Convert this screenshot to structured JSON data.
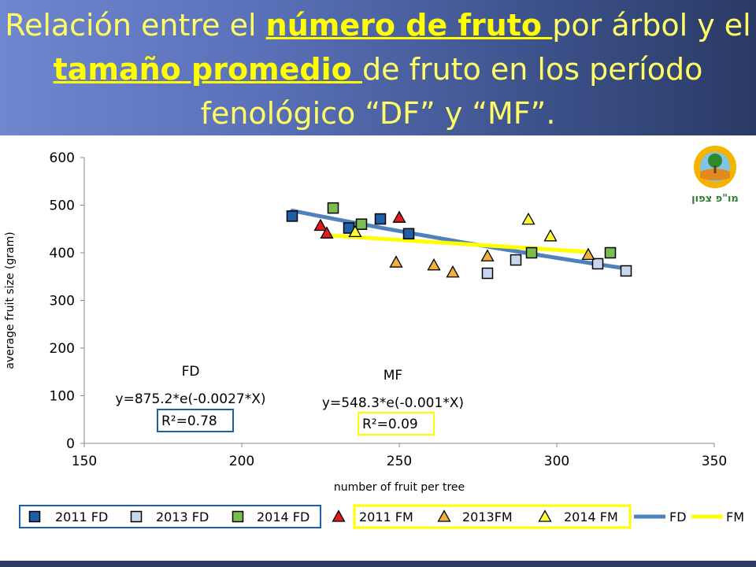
{
  "slide": {
    "title_part1": "Relación entre el ",
    "title_u1": "número de fruto ",
    "title_part2": "por árbol y el",
    "title_u2": "tamaño promedio ",
    "title_part3": "de fruto en los período",
    "title_line3": "fenológico  “DF” y “MF”.",
    "logo_text": "מו\"פ צפון",
    "logo_ring_text": "NORTHERN R&D"
  },
  "chart_data": {
    "type": "scatter",
    "xlabel": "number of fruit per tree",
    "ylabel": "average fruit size (gram)",
    "xlim": [
      150,
      350
    ],
    "ylim": [
      0,
      600
    ],
    "xticks": [
      150,
      200,
      250,
      300,
      350
    ],
    "yticks": [
      0,
      100,
      200,
      300,
      400,
      500,
      600
    ],
    "grid": false,
    "series": [
      {
        "name": "2011 FD",
        "marker": "square",
        "color": "#1f5fa8",
        "points": [
          [
            216,
            477
          ],
          [
            234,
            452
          ],
          [
            244,
            471
          ],
          [
            253,
            440
          ]
        ]
      },
      {
        "name": "2013 FD",
        "marker": "square",
        "color": "#c9d7ee",
        "points": [
          [
            278,
            357
          ],
          [
            287,
            385
          ],
          [
            313,
            377
          ],
          [
            322,
            362
          ]
        ]
      },
      {
        "name": "2014 FD",
        "marker": "square",
        "color": "#7cbd4f",
        "points": [
          [
            229,
            494
          ],
          [
            238,
            460
          ],
          [
            292,
            400
          ],
          [
            317,
            400
          ]
        ]
      },
      {
        "name": "2011 FM",
        "marker": "triangle",
        "color": "#e11c1c",
        "points": [
          [
            225,
            457
          ],
          [
            227,
            441
          ],
          [
            250,
            474
          ]
        ]
      },
      {
        "name": "2013FM",
        "marker": "triangle",
        "color": "#f2b03a",
        "points": [
          [
            249,
            380
          ],
          [
            261,
            374
          ],
          [
            267,
            359
          ],
          [
            278,
            393
          ],
          [
            310,
            396
          ]
        ]
      },
      {
        "name": "2014 FM",
        "marker": "triangle",
        "color": "#ffff33",
        "points": [
          [
            236,
            444
          ],
          [
            291,
            470
          ],
          [
            298,
            435
          ]
        ]
      }
    ],
    "trendlines": [
      {
        "name": "FD",
        "color": "#4f81bd",
        "a": 875.2,
        "b": -0.0027,
        "x_range": [
          216,
          322
        ]
      },
      {
        "name": "FM",
        "color": "#ffff00",
        "a": 548.3,
        "b": -0.001,
        "x_range": [
          227,
          310
        ]
      }
    ],
    "annotations": {
      "fd_label": "FD",
      "fd_equation": "y=875.2*e(-0.0027*X)",
      "fd_r2": "R²=0.78",
      "mf_label": "MF",
      "mf_equation": "y=548.3*e(-0.001*X)",
      "mf_r2": "R²=0.09"
    },
    "legend": {
      "placement": "bottom",
      "items": [
        "2011 FD",
        "2013 FD",
        "2014 FD",
        "2011 FM",
        "2013FM",
        "2014 FM",
        "FD",
        "FM"
      ]
    }
  }
}
